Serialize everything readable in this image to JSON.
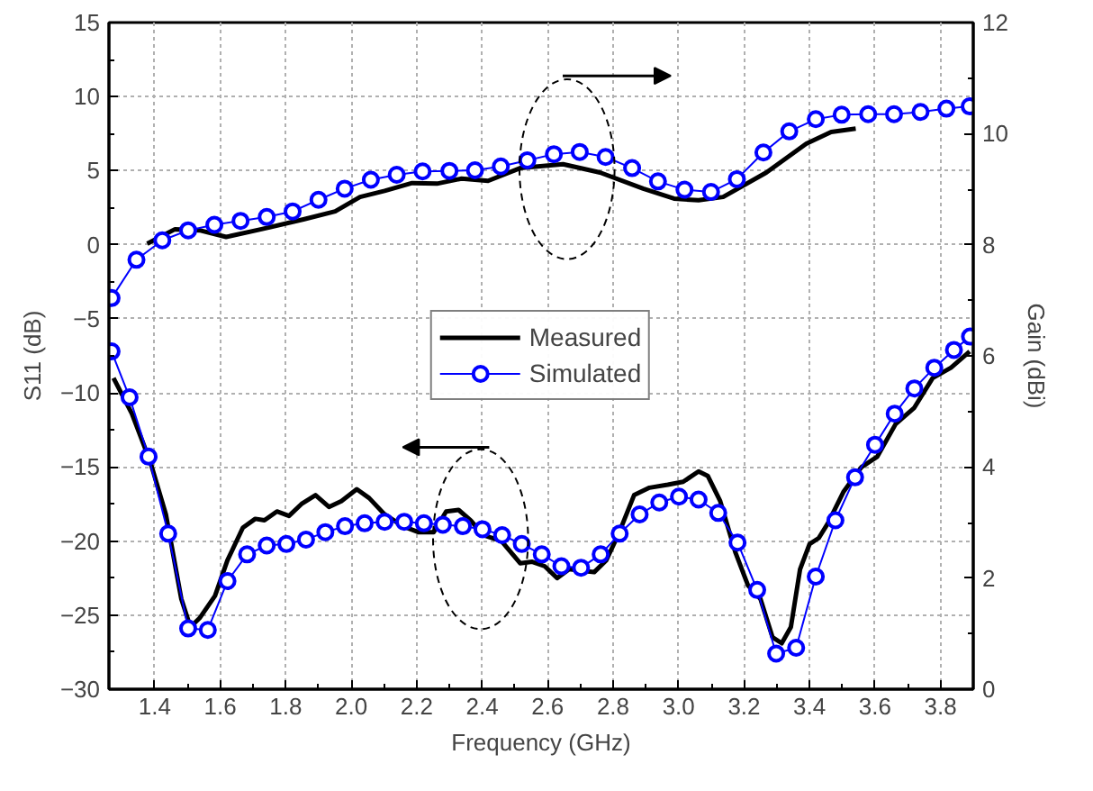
{
  "chart_data": {
    "type": "line",
    "xlabel": "Frequency (GHz)",
    "ylabel": "S11 (dB)",
    "y2label": "Gain (dBi)",
    "xlim": [
      1.26,
      3.9
    ],
    "xticks": [
      1.4,
      1.6,
      1.8,
      {
        "value": 2.0,
        "label": "2.0"
      },
      2.2,
      2.4,
      2.6,
      2.8,
      {
        "value": 3.0,
        "label": "3.0"
      },
      3.2,
      3.4,
      3.6,
      3.8
    ],
    "ylim": [
      -30,
      15
    ],
    "yticks": [
      -30,
      -25,
      -20,
      -15,
      -10,
      -5,
      0,
      5,
      10,
      15
    ],
    "y2lim": [
      0,
      12
    ],
    "y2ticks": [
      0,
      2,
      4,
      6,
      8,
      10,
      12
    ],
    "grid": true,
    "legend": "center",
    "series": [
      {
        "name": "Measured",
        "color": "#000000",
        "marker": "none",
        "line_style": "solid",
        "x": [
          1.274,
          1.33,
          1.387,
          1.434,
          1.481,
          1.509,
          1.537,
          1.584,
          1.622,
          1.669,
          1.707,
          1.735,
          1.773,
          1.81,
          1.848,
          1.891,
          1.932,
          1.97,
          2.017,
          2.055,
          2.102,
          2.158,
          2.205,
          2.252,
          2.29,
          2.328,
          2.365,
          2.403,
          2.459,
          2.516,
          2.553,
          2.591,
          2.629,
          2.666,
          2.704,
          2.742,
          2.779,
          2.817,
          2.864,
          2.911,
          2.967,
          3.014,
          3.061,
          3.089,
          3.127,
          3.174,
          3.212,
          3.25,
          3.287,
          3.315,
          3.343,
          3.371,
          3.4,
          3.428,
          3.456,
          3.503,
          3.559,
          3.607,
          3.663,
          3.72,
          3.776,
          3.832,
          3.889
        ],
        "values": [
          -9.0,
          -11.4,
          -14.7,
          -18.2,
          -23.9,
          -25.8,
          -25.2,
          -23.7,
          -21.3,
          -19.1,
          -18.5,
          -18.6,
          -18.0,
          -18.3,
          -17.5,
          -16.9,
          -17.7,
          -17.3,
          -16.5,
          -17.1,
          -18.2,
          -19.0,
          -19.4,
          -19.4,
          -18.0,
          -17.9,
          -18.6,
          -19.6,
          -20.0,
          -21.5,
          -21.4,
          -21.7,
          -22.5,
          -21.9,
          -22.0,
          -22.1,
          -21.3,
          -19.5,
          -16.9,
          -16.4,
          -16.2,
          -16.0,
          -15.3,
          -15.6,
          -17.3,
          -20.8,
          -23.0,
          -23.9,
          -26.5,
          -26.9,
          -25.8,
          -21.9,
          -20.2,
          -19.8,
          -18.8,
          -16.7,
          -15.0,
          -14.3,
          -12.1,
          -11.0,
          -9.0,
          -8.3,
          -7.2
        ]
      },
      {
        "name": "Simulated",
        "color": "#0000ff",
        "marker": "circle",
        "line_style": "solid",
        "x": [
          1.268,
          1.323,
          1.381,
          1.441,
          1.502,
          1.562,
          1.622,
          1.682,
          1.742,
          1.802,
          1.862,
          1.921,
          1.981,
          2.041,
          2.102,
          2.162,
          2.222,
          2.28,
          2.341,
          2.401,
          2.461,
          2.521,
          2.582,
          2.642,
          2.702,
          2.762,
          2.82,
          2.881,
          2.941,
          3.001,
          3.061,
          3.121,
          3.18,
          3.24,
          3.298,
          3.359,
          3.419,
          3.479,
          3.539,
          3.6,
          3.66,
          3.72,
          3.781,
          3.841,
          3.89
        ],
        "values": [
          -7.2,
          -10.3,
          -14.3,
          -19.5,
          -25.9,
          -26.0,
          -22.7,
          -20.9,
          -20.3,
          -20.2,
          -19.9,
          -19.4,
          -19.0,
          -18.8,
          -18.7,
          -18.7,
          -18.8,
          -18.9,
          -19.0,
          -19.2,
          -19.6,
          -20.2,
          -20.9,
          -21.7,
          -21.8,
          -20.9,
          -19.5,
          -18.2,
          -17.4,
          -17.0,
          -17.2,
          -18.1,
          -20.1,
          -23.3,
          -27.6,
          -27.2,
          -22.4,
          -18.6,
          -15.7,
          -13.5,
          -11.4,
          -9.7,
          -8.3,
          -7.1,
          -6.2
        ]
      },
      {
        "color": "#000000",
        "marker": "none",
        "line_style": "solid",
        "axis": "y2",
        "x": [
          1.377,
          1.462,
          1.537,
          1.618,
          1.726,
          1.857,
          1.951,
          2.027,
          2.102,
          2.186,
          2.262,
          2.337,
          2.418,
          2.516,
          2.647,
          2.76,
          2.892,
          2.986,
          3.061,
          3.136,
          3.268,
          3.39,
          3.466,
          3.541
        ],
        "values": [
          8.02,
          8.28,
          8.26,
          8.14,
          8.28,
          8.46,
          8.6,
          8.86,
          8.97,
          9.11,
          9.1,
          9.19,
          9.15,
          9.38,
          9.45,
          9.3,
          9.01,
          8.83,
          8.8,
          8.86,
          9.3,
          9.82,
          10.03,
          10.09
        ]
      },
      {
        "color": "#0000ff",
        "marker": "circle",
        "line_style": "solid",
        "axis": "y2",
        "x": [
          1.268,
          1.344,
          1.423,
          1.502,
          1.582,
          1.662,
          1.742,
          1.821,
          1.9,
          1.98,
          2.06,
          2.139,
          2.218,
          2.3,
          2.378,
          2.457,
          2.538,
          2.619,
          2.698,
          2.777,
          2.858,
          2.937,
          3.018,
          3.099,
          3.178,
          3.259,
          3.338,
          3.419,
          3.498,
          3.579,
          3.658,
          3.739,
          3.818,
          3.889
        ],
        "values": [
          7.04,
          7.73,
          8.08,
          8.26,
          8.36,
          8.43,
          8.5,
          8.6,
          8.81,
          9.01,
          9.17,
          9.26,
          9.32,
          9.33,
          9.34,
          9.41,
          9.52,
          9.63,
          9.67,
          9.58,
          9.38,
          9.14,
          8.99,
          8.95,
          9.18,
          9.66,
          10.04,
          10.26,
          10.34,
          10.35,
          10.35,
          10.39,
          10.45,
          10.49
        ]
      }
    ]
  }
}
